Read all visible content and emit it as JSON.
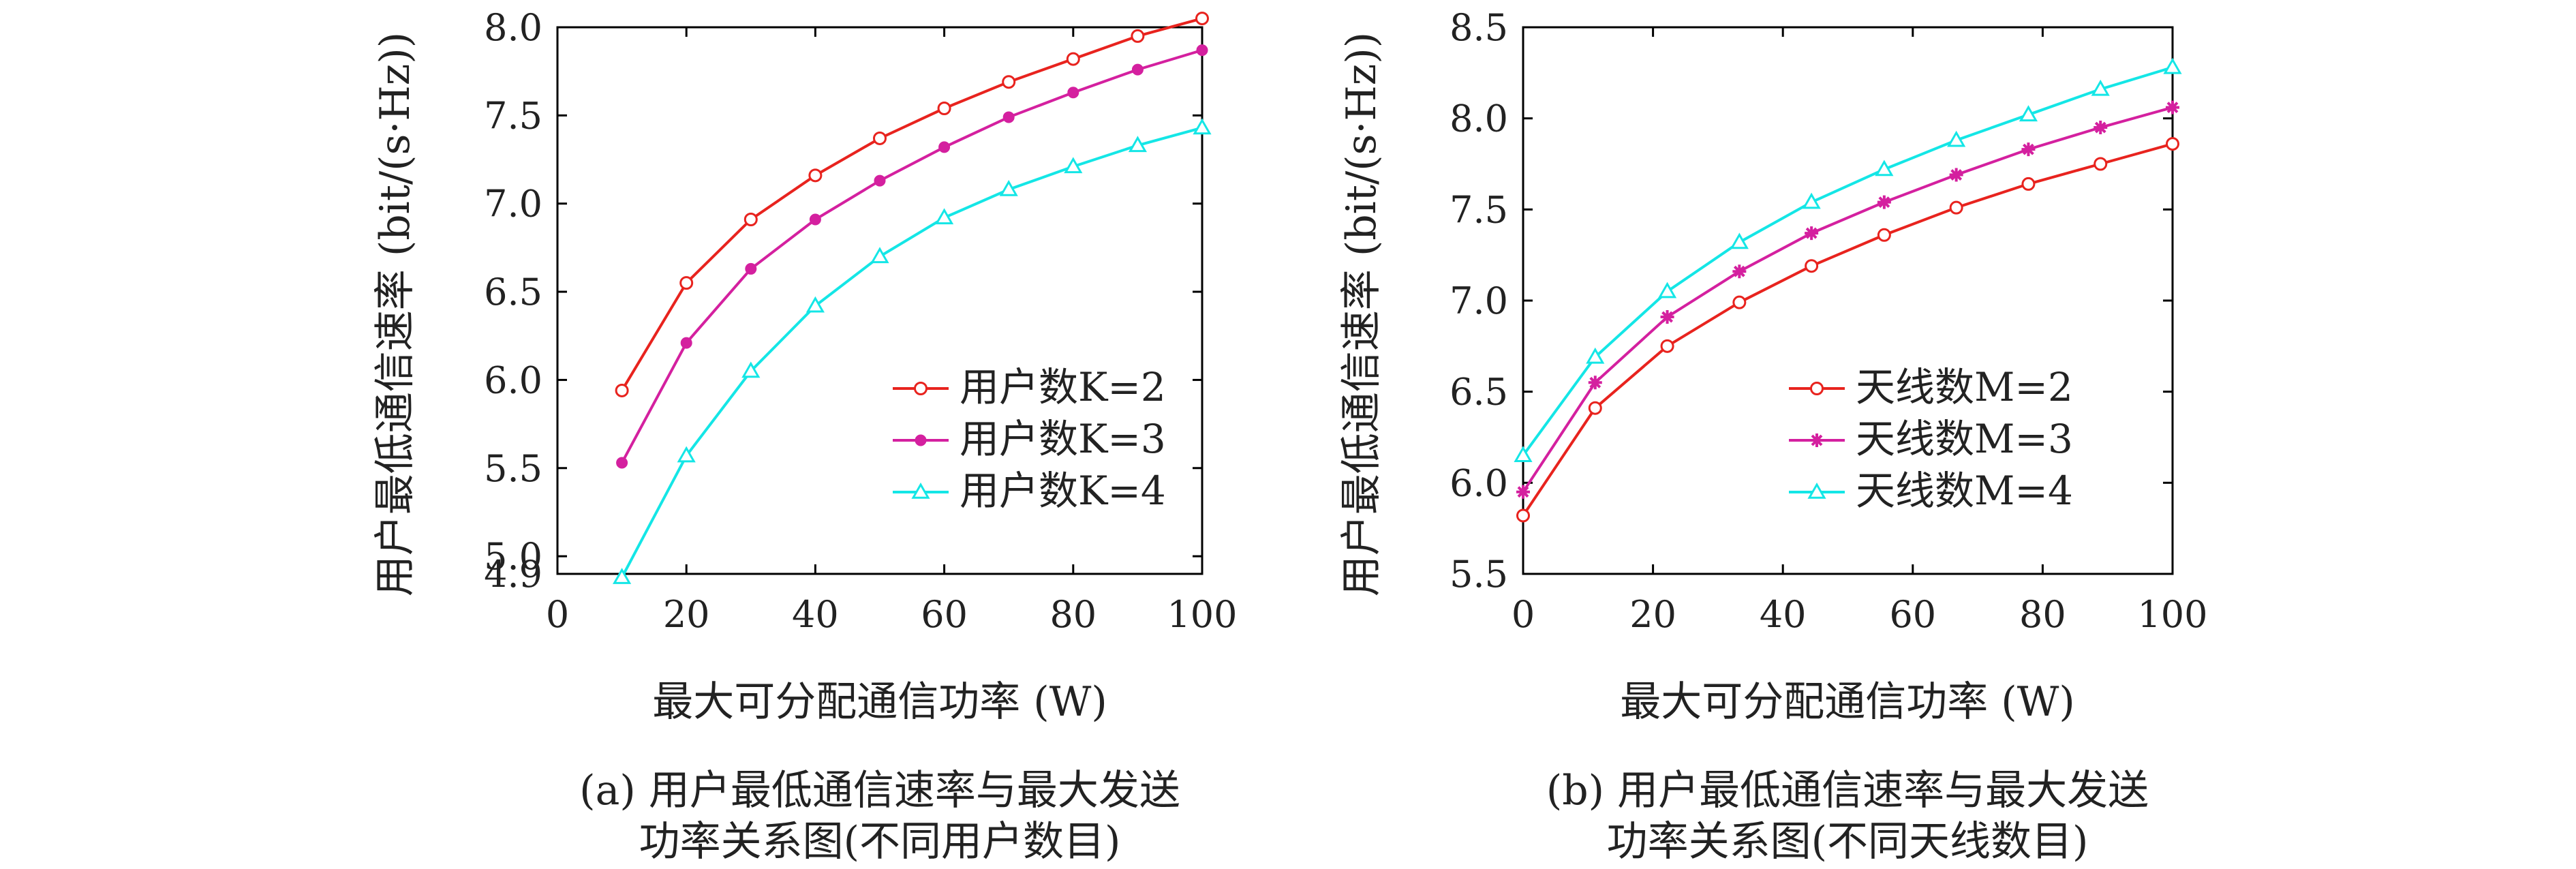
{
  "chart_data": [
    {
      "type": "line",
      "xlabel": "最大可分配通信功率 (W)",
      "ylabel": "用户最低通信速率 (bit/(s·Hz))",
      "xlim": [
        0,
        100
      ],
      "ylim": [
        4.9,
        8.0
      ],
      "xticks": [
        "0",
        "20",
        "40",
        "60",
        "80",
        "100"
      ],
      "yticks": [
        "4.9",
        "5.0",
        "5.5",
        "6.0",
        "6.5",
        "7.0",
        "7.5",
        "8.0"
      ],
      "x": [
        10,
        20,
        30,
        40,
        50,
        60,
        70,
        80,
        90,
        100
      ],
      "legend_position": "lower-right",
      "series": [
        {
          "name": "用户数K=2",
          "color": "#e8231e",
          "marker": "circle",
          "values": [
            5.94,
            6.55,
            6.91,
            7.16,
            7.37,
            7.54,
            7.69,
            7.82,
            7.95,
            8.05
          ]
        },
        {
          "name": "用户数K=3",
          "color": "#d4209f",
          "marker": "dot",
          "values": [
            5.53,
            6.21,
            6.63,
            6.91,
            7.13,
            7.32,
            7.49,
            7.63,
            7.76,
            7.87
          ]
        },
        {
          "name": "用户数K=4",
          "color": "#14e6e6",
          "marker": "triangle",
          "values": [
            4.88,
            5.57,
            6.05,
            6.42,
            6.7,
            6.92,
            7.08,
            7.21,
            7.33,
            7.43
          ]
        }
      ],
      "caption_line1": "(a) 用户最低通信速率与最大发送",
      "caption_line2": "功率关系图(不同用户数目)"
    },
    {
      "type": "line",
      "xlabel": "最大可分配通信功率 (W)",
      "ylabel": "用户最低通信速率 (bit/(s·Hz))",
      "xlim": [
        0,
        100
      ],
      "ylim": [
        5.5,
        8.5
      ],
      "xticks": [
        "0",
        "20",
        "40",
        "60",
        "80",
        "100"
      ],
      "yticks": [
        "5.5",
        "6.0",
        "6.5",
        "7.0",
        "7.5",
        "8.0",
        "8.5"
      ],
      "x": [
        0,
        11.1,
        22.2,
        33.3,
        44.4,
        55.6,
        66.7,
        77.8,
        88.9,
        100
      ],
      "legend_position": "lower-right",
      "series": [
        {
          "name": "天线数M=2",
          "color": "#e8231e",
          "marker": "circle",
          "values": [
            5.82,
            6.41,
            6.75,
            6.99,
            7.19,
            7.36,
            7.51,
            7.64,
            7.75,
            7.86
          ]
        },
        {
          "name": "天线数M=3",
          "color": "#d4209f",
          "marker": "star",
          "values": [
            5.95,
            6.55,
            6.91,
            7.16,
            7.37,
            7.54,
            7.69,
            7.83,
            7.95,
            8.06
          ]
        },
        {
          "name": "天线数M=4",
          "color": "#14e6e6",
          "marker": "triangle",
          "values": [
            6.15,
            6.69,
            7.05,
            7.32,
            7.54,
            7.72,
            7.88,
            8.02,
            8.16,
            8.28
          ]
        }
      ],
      "caption_line1": "(b) 用户最低通信速率与最大发送",
      "caption_line2": "功率关系图(不同天线数目)"
    }
  ]
}
